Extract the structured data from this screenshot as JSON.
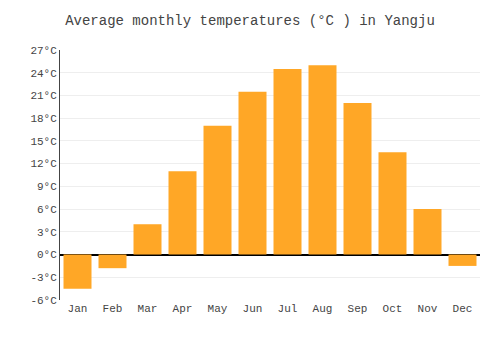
{
  "chart_data": {
    "type": "bar",
    "title": "Average monthly temperatures (°C ) in Yangju",
    "categories": [
      "Jan",
      "Feb",
      "Mar",
      "Apr",
      "May",
      "Jun",
      "Jul",
      "Aug",
      "Sep",
      "Oct",
      "Nov",
      "Dec"
    ],
    "values": [
      -4.5,
      -1.8,
      4.0,
      11.0,
      17.0,
      21.5,
      24.5,
      25.0,
      20.0,
      13.5,
      6.0,
      -1.5
    ],
    "color": "#FFA726",
    "ylim": [
      -6,
      27
    ],
    "yticks": [
      {
        "value": -6,
        "label": "-6°C"
      },
      {
        "value": -3,
        "label": "-3°C"
      },
      {
        "value": 0,
        "label": "0°C"
      },
      {
        "value": 3,
        "label": "3°C"
      },
      {
        "value": 6,
        "label": "6°C"
      },
      {
        "value": 9,
        "label": "9°C"
      },
      {
        "value": 12,
        "label": "12°C"
      },
      {
        "value": 15,
        "label": "15°C"
      },
      {
        "value": 18,
        "label": "18°C"
      },
      {
        "value": 21,
        "label": "21°C"
      },
      {
        "value": 24,
        "label": "24°C"
      },
      {
        "value": 27,
        "label": "27°C"
      }
    ],
    "grid": true
  }
}
